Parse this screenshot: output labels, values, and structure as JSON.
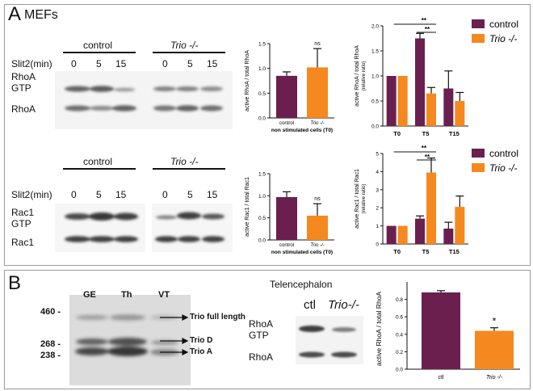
{
  "panelA": {
    "letter": "A",
    "title": "MEFs",
    "blot_top": {
      "group_left": "control",
      "group_right": "Trio -/-",
      "row_label": "Slit2(min)",
      "times_left": [
        "0",
        "5",
        "15"
      ],
      "times_right": [
        "0",
        "5",
        "15"
      ],
      "band1_line1": "RhoA",
      "band1_line2": "GTP",
      "band2": "RhoA"
    },
    "blot_bottom": {
      "group_left": "control",
      "group_right": "Trio -/-",
      "row_label": "Slit2(min)",
      "times_left": [
        "0",
        "5",
        "15"
      ],
      "times_right": [
        "0",
        "5",
        "15"
      ],
      "band1_line1": "Rac1",
      "band1_line2": "GTP",
      "band2": "Rac1"
    }
  },
  "panelB": {
    "letter": "B",
    "gel": {
      "lanes": [
        "GE",
        "Th",
        "VT"
      ],
      "markers": [
        "460 -",
        "268 -",
        "238 -"
      ],
      "bands": [
        "Trio full length",
        "Trio D",
        "Trio A"
      ]
    },
    "tel": {
      "title": "Telencephalon",
      "col1": "ctl",
      "col2": "Trio-/-",
      "band1_line1": "RhoA",
      "band1_line2": "GTP",
      "band2": "RhoA"
    }
  },
  "colors": {
    "control": "#6b1f4f",
    "trio": "#f5891f"
  },
  "chart_data": [
    {
      "id": "rhoa-t0",
      "type": "bar",
      "categories": [
        "control",
        "Trio -/-"
      ],
      "values": [
        0.85,
        1.02
      ],
      "errors": [
        0.08,
        0.38
      ],
      "ylim": [
        0,
        1.5
      ],
      "ylabel": "active RhoA / total RhoA",
      "xlabel": "non stimulated cells (T0)",
      "annotations": [
        "ns"
      ]
    },
    {
      "id": "rhoa-time",
      "type": "bar",
      "categories": [
        "T0",
        "T5",
        "T15"
      ],
      "series": [
        {
          "name": "control",
          "values": [
            1.0,
            1.75,
            0.75
          ],
          "errors": [
            0,
            0.1,
            0.35
          ]
        },
        {
          "name": "Trio -/-",
          "values": [
            1.0,
            0.65,
            0.5
          ],
          "errors": [
            0,
            0.12,
            0.17
          ]
        }
      ],
      "ylim": [
        0,
        2.0
      ],
      "yticks": [
        "0.0",
        "0.5",
        "1.0",
        "1.5",
        "2.0"
      ],
      "ylabel": "active RhoA / total RhoA",
      "ylabel2": "(relative ratio)",
      "legend": [
        "control",
        "Trio -/-"
      ],
      "annotations": [
        "**",
        "**"
      ]
    },
    {
      "id": "rac1-t0",
      "type": "bar",
      "categories": [
        "control",
        "Trio -/-"
      ],
      "values": [
        0.97,
        0.55
      ],
      "errors": [
        0.12,
        0.27
      ],
      "ylim": [
        0,
        1.5
      ],
      "ylabel": "active Rac1 / total Rac1",
      "xlabel": "non stimulated cells (T0)",
      "annotations": [
        "ns"
      ]
    },
    {
      "id": "rac1-time",
      "type": "bar",
      "categories": [
        "T0",
        "T5",
        "T15"
      ],
      "series": [
        {
          "name": "control",
          "values": [
            1.0,
            1.4,
            0.85
          ],
          "errors": [
            0,
            0.15,
            0.35
          ]
        },
        {
          "name": "Trio -/-",
          "values": [
            1.0,
            3.95,
            2.05
          ],
          "errors": [
            0,
            0.8,
            0.6
          ]
        }
      ],
      "ylim": [
        0,
        5
      ],
      "yticks": [
        "0",
        "1",
        "2",
        "3",
        "4",
        "5"
      ],
      "ylabel": "active Rac1 / total Rac1",
      "ylabel2": "(relative ratio)",
      "legend": [
        "control",
        "Trio -/-"
      ],
      "annotations": [
        "**",
        "**"
      ]
    },
    {
      "id": "tel-rhoa",
      "type": "bar",
      "categories": [
        "ctl",
        "Trio -/-"
      ],
      "values": [
        0.88,
        0.44
      ],
      "errors": [
        0.02,
        0.035
      ],
      "ylim": [
        0,
        1.0
      ],
      "ylabel": "active RhoA / total RhoA",
      "annotations": [
        "*"
      ]
    }
  ]
}
